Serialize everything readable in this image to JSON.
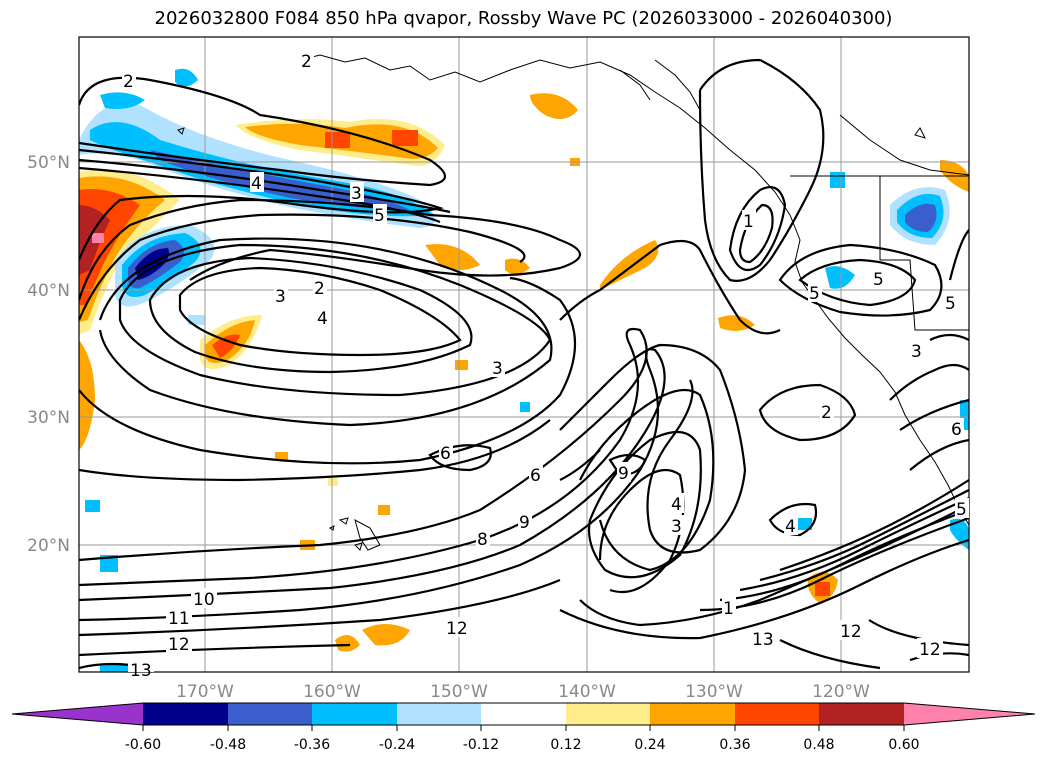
{
  "title": "2026032800 F084 850 hPa qvapor, Rossby Wave PC (2026033000 - 2026040300)",
  "map": {
    "lat_labels": [
      "50°N",
      "40°N",
      "30°N",
      "20°N"
    ],
    "lon_labels": [
      "170°W",
      "160°W",
      "150°W",
      "140°W",
      "130°W",
      "120°W"
    ],
    "contour_labels": [
      "2",
      "2",
      "4",
      "3",
      "5",
      "3",
      "2",
      "4",
      "1",
      "5",
      "5",
      "5",
      "3",
      "3",
      "2",
      "6",
      "6",
      "9",
      "9",
      "8",
      "4",
      "3",
      "4",
      "1",
      "13",
      "12",
      "12",
      "10",
      "11",
      "12",
      "13",
      "12",
      "6",
      "5"
    ]
  },
  "colorbar": {
    "ticks": [
      "-0.60",
      "-0.48",
      "-0.36",
      "-0.24",
      "-0.12",
      "0.12",
      "0.24",
      "0.36",
      "0.48",
      "0.60"
    ],
    "colors": [
      "#9933cc",
      "#00008b",
      "#3a5fcd",
      "#00bfff",
      "#b0e2ff",
      "#ffffff",
      "#ffec8b",
      "#ffa500",
      "#ff4500",
      "#b22222",
      "#ff82ab"
    ]
  }
}
